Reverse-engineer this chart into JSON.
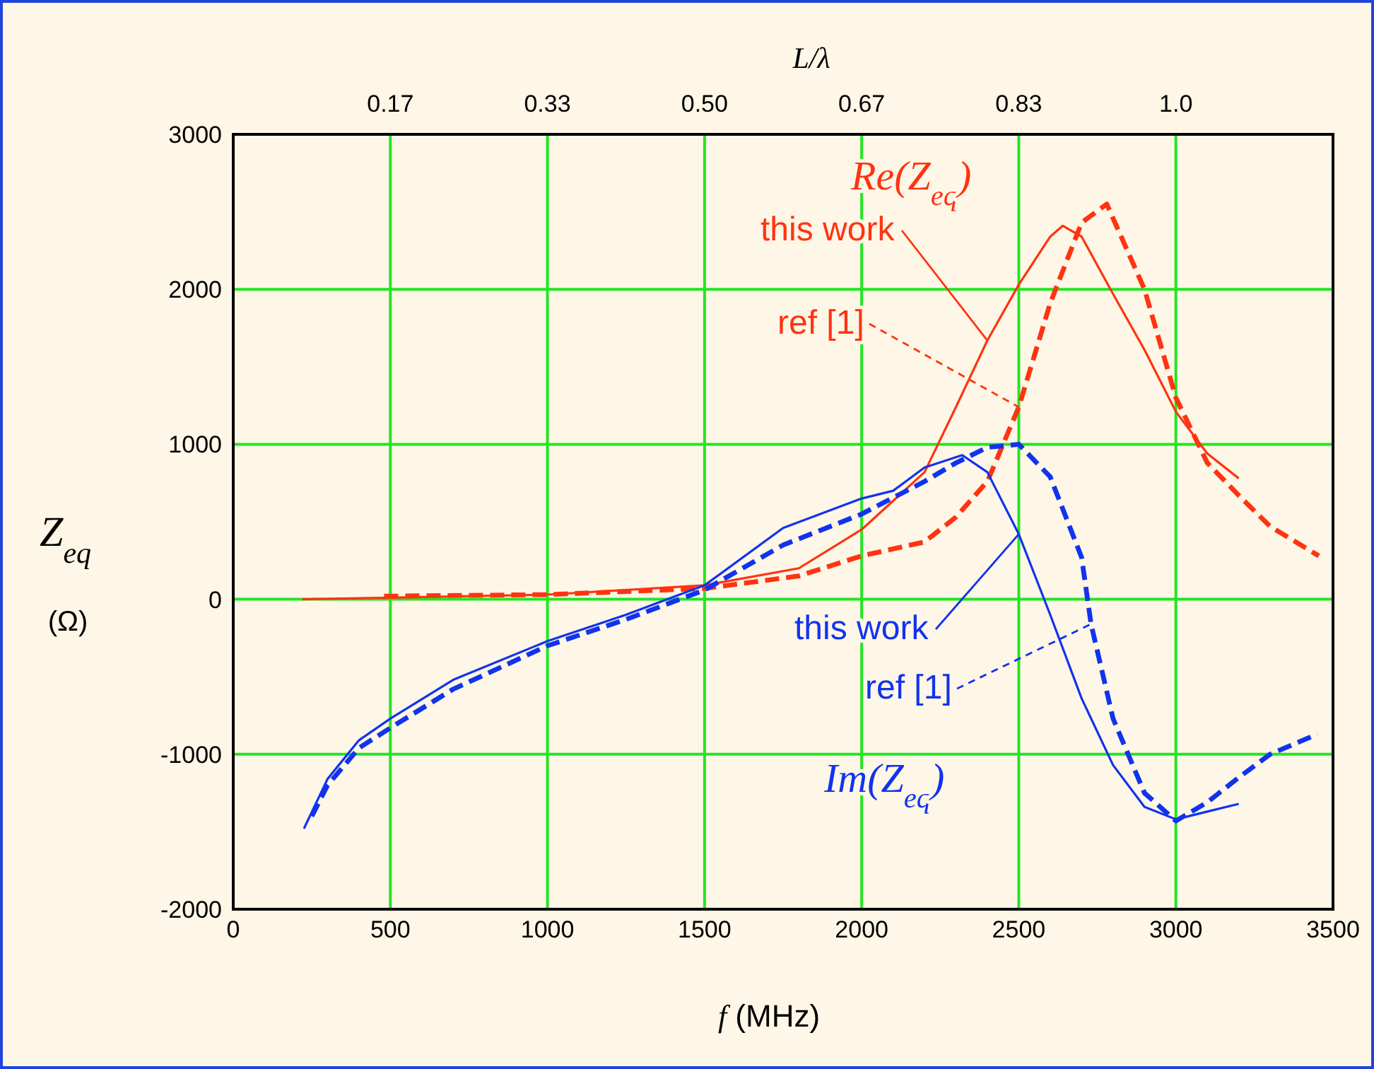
{
  "chart_data": {
    "type": "line",
    "xlabel": "f (MHz)",
    "ylabel": "Z$_{eq}$ (Ω)",
    "x2label": "L/λ",
    "xlim": [
      0,
      3500
    ],
    "xticks": [
      0,
      500,
      1000,
      1500,
      2000,
      2500,
      3000,
      3500
    ],
    "ylim": [
      -2000,
      3000
    ],
    "yticks": [
      -2000,
      -1000,
      0,
      1000,
      2000,
      3000
    ],
    "x2lim": [
      0,
      1.1667
    ],
    "x2ticks": [
      {
        "value": 0.1667,
        "label": "0.17"
      },
      {
        "value": 0.3333,
        "label": "0.33"
      },
      {
        "value": 0.5,
        "label": "0.50"
      },
      {
        "value": 0.6667,
        "label": "0.67"
      },
      {
        "value": 0.8333,
        "label": "0.83"
      },
      {
        "value": 1.0,
        "label": "1.0"
      }
    ],
    "grid": true,
    "marker": "none",
    "annotations": [
      "Re(Z$_{eq}$)",
      {
        "text": "this work",
        "x": 2400,
        "y": 1670
      },
      {
        "text": "ref [1]",
        "x": 2500,
        "y": 1240
      },
      {
        "text": "this work",
        "x": 2500,
        "y": 420
      },
      {
        "text": "ref [1]",
        "x": 2730,
        "y": -160
      },
      "Im(Z$_{eq}$)"
    ],
    "series": [
      {
        "color": "#ff3311",
        "line_style": "solid",
        "x": [
          220,
          500,
          1000,
          1500,
          1800,
          2000,
          2200,
          2300,
          2400,
          2500,
          2600,
          2640,
          2700,
          2800,
          2900,
          3000,
          3100,
          3200
        ],
        "values": [
          0,
          10,
          30,
          90,
          200,
          450,
          820,
          1240,
          1670,
          2030,
          2340,
          2410,
          2340,
          1970,
          1610,
          1210,
          940,
          780
        ]
      },
      {
        "color": "#ff3311",
        "line_style": "dashed",
        "x": [
          480,
          1000,
          1500,
          1800,
          2000,
          2200,
          2300,
          2400,
          2500,
          2600,
          2700,
          2780,
          2900,
          3000,
          3100,
          3200,
          3300,
          3455
        ],
        "values": [
          20,
          30,
          70,
          150,
          280,
          370,
          530,
          760,
          1240,
          1910,
          2430,
          2550,
          2000,
          1300,
          880,
          670,
          470,
          280
        ]
      },
      {
        "color": "#1133ee",
        "line_style": "solid",
        "x": [
          225,
          300,
          400,
          500,
          700,
          1000,
          1250,
          1500,
          1750,
          2000,
          2100,
          2200,
          2320,
          2400,
          2500,
          2600,
          2700,
          2800,
          2900,
          3000,
          3100,
          3200
        ],
        "values": [
          -1480,
          -1160,
          -910,
          -770,
          -520,
          -270,
          -100,
          90,
          460,
          650,
          700,
          850,
          930,
          820,
          420,
          -100,
          -640,
          -1070,
          -1340,
          -1420,
          -1370,
          -1320
        ]
      },
      {
        "color": "#1133ee",
        "line_style": "dashed",
        "x": [
          250,
          300,
          400,
          500,
          700,
          1000,
          1250,
          1500,
          1750,
          2000,
          2200,
          2300,
          2400,
          2500,
          2600,
          2700,
          2730,
          2800,
          2900,
          3000,
          3100,
          3200,
          3300,
          3450
        ],
        "values": [
          -1400,
          -1200,
          -960,
          -830,
          -580,
          -300,
          -130,
          60,
          350,
          550,
          760,
          880,
          980,
          1000,
          790,
          270,
          -160,
          -770,
          -1250,
          -1430,
          -1310,
          -1150,
          -1000,
          -870
        ]
      }
    ]
  }
}
